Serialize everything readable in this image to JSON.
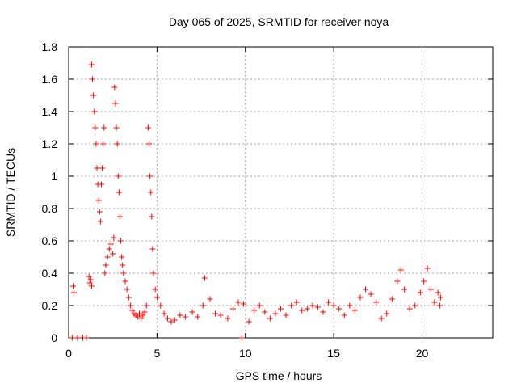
{
  "chart_data": {
    "type": "scatter",
    "title": "Day 065 of 2025, SRMTID for receiver noya",
    "xlabel": "GPS time / hours",
    "ylabel": "SRMTID / TECUs",
    "xlim": [
      0,
      24
    ],
    "ylim": [
      0,
      1.8
    ],
    "x_ticks": [
      0,
      5,
      10,
      15,
      20
    ],
    "y_ticks": [
      0,
      0.2,
      0.4,
      0.6,
      0.8,
      1,
      1.2,
      1.4,
      1.6,
      1.8
    ],
    "x_tick_labels": [
      "0",
      "5",
      "10",
      "15",
      "20"
    ],
    "y_tick_labels": [
      "0",
      "0.2",
      "0.4",
      "0.6",
      "0.8",
      "1",
      "1.2",
      "1.4",
      "1.6",
      "1.8"
    ],
    "grid": true,
    "marker": "plus",
    "marker_color": "#ff0000",
    "series": [
      {
        "name": "SRMTID",
        "points": [
          [
            0.25,
            0.32
          ],
          [
            0.3,
            0.28
          ],
          [
            1.15,
            0.38
          ],
          [
            1.2,
            0.34
          ],
          [
            1.25,
            0.36
          ],
          [
            1.3,
            0.32
          ],
          [
            1.3,
            1.69
          ],
          [
            1.35,
            1.6
          ],
          [
            1.4,
            1.5
          ],
          [
            1.45,
            1.4
          ],
          [
            1.5,
            1.3
          ],
          [
            1.55,
            1.2
          ],
          [
            1.6,
            1.05
          ],
          [
            1.65,
            0.95
          ],
          [
            1.7,
            0.85
          ],
          [
            1.75,
            0.78
          ],
          [
            1.8,
            0.72
          ],
          [
            1.85,
            0.95
          ],
          [
            1.9,
            1.05
          ],
          [
            1.95,
            1.2
          ],
          [
            2.0,
            1.3
          ],
          [
            2.05,
            0.4
          ],
          [
            2.1,
            0.45
          ],
          [
            2.2,
            0.5
          ],
          [
            2.3,
            0.55
          ],
          [
            2.4,
            0.58
          ],
          [
            2.5,
            0.52
          ],
          [
            2.55,
            0.62
          ],
          [
            2.6,
            1.55
          ],
          [
            2.65,
            1.45
          ],
          [
            2.7,
            1.3
          ],
          [
            2.75,
            1.2
          ],
          [
            2.8,
            1.0
          ],
          [
            2.85,
            0.9
          ],
          [
            2.9,
            0.75
          ],
          [
            2.95,
            0.6
          ],
          [
            3.0,
            0.5
          ],
          [
            3.05,
            0.45
          ],
          [
            3.1,
            0.4
          ],
          [
            3.2,
            0.35
          ],
          [
            3.3,
            0.3
          ],
          [
            3.4,
            0.25
          ],
          [
            3.5,
            0.2
          ],
          [
            3.6,
            0.17
          ],
          [
            3.7,
            0.15
          ],
          [
            3.8,
            0.14
          ],
          [
            3.9,
            0.13
          ],
          [
            4.0,
            0.15
          ],
          [
            4.1,
            0.12
          ],
          [
            4.2,
            0.14
          ],
          [
            4.3,
            0.16
          ],
          [
            4.4,
            0.2
          ],
          [
            4.5,
            1.3
          ],
          [
            4.55,
            1.2
          ],
          [
            4.6,
            1.0
          ],
          [
            4.65,
            0.9
          ],
          [
            4.7,
            0.75
          ],
          [
            4.75,
            0.55
          ],
          [
            4.8,
            0.4
          ],
          [
            4.9,
            0.3
          ],
          [
            5.0,
            0.25
          ],
          [
            5.2,
            0.2
          ],
          [
            5.4,
            0.15
          ],
          [
            5.6,
            0.12
          ],
          [
            5.8,
            0.1
          ],
          [
            6.0,
            0.11
          ],
          [
            6.3,
            0.14
          ],
          [
            6.6,
            0.13
          ],
          [
            7.0,
            0.16
          ],
          [
            7.3,
            0.13
          ],
          [
            7.6,
            0.2
          ],
          [
            7.7,
            0.37
          ],
          [
            8.0,
            0.24
          ],
          [
            8.3,
            0.15
          ],
          [
            8.6,
            0.14
          ],
          [
            9.0,
            0.12
          ],
          [
            9.3,
            0.18
          ],
          [
            9.6,
            0.22
          ],
          [
            9.9,
            0.21
          ],
          [
            10.2,
            0.1
          ],
          [
            10.5,
            0.17
          ],
          [
            10.8,
            0.2
          ],
          [
            11.1,
            0.16
          ],
          [
            11.4,
            0.12
          ],
          [
            11.7,
            0.15
          ],
          [
            12.0,
            0.18
          ],
          [
            12.3,
            0.14
          ],
          [
            12.6,
            0.2
          ],
          [
            12.9,
            0.22
          ],
          [
            13.2,
            0.17
          ],
          [
            13.5,
            0.18
          ],
          [
            13.8,
            0.2
          ],
          [
            14.1,
            0.19
          ],
          [
            14.4,
            0.16
          ],
          [
            14.7,
            0.22
          ],
          [
            15.0,
            0.2
          ],
          [
            15.3,
            0.18
          ],
          [
            15.6,
            0.14
          ],
          [
            15.9,
            0.2
          ],
          [
            16.2,
            0.17
          ],
          [
            16.5,
            0.25
          ],
          [
            16.8,
            0.3
          ],
          [
            17.1,
            0.27
          ],
          [
            17.4,
            0.22
          ],
          [
            17.7,
            0.12
          ],
          [
            18.0,
            0.15
          ],
          [
            18.3,
            0.24
          ],
          [
            18.6,
            0.35
          ],
          [
            18.8,
            0.42
          ],
          [
            19.0,
            0.3
          ],
          [
            19.3,
            0.18
          ],
          [
            19.6,
            0.2
          ],
          [
            19.9,
            0.28
          ],
          [
            20.1,
            0.35
          ],
          [
            20.3,
            0.43
          ],
          [
            20.5,
            0.3
          ],
          [
            20.7,
            0.22
          ],
          [
            20.9,
            0.28
          ],
          [
            21.0,
            0.2
          ],
          [
            21.05,
            0.25
          ],
          [
            0.2,
            0.0
          ],
          [
            0.5,
            0.0
          ],
          [
            0.8,
            0.0
          ],
          [
            1.0,
            0.0
          ],
          [
            9.8,
            0.0
          ]
        ]
      }
    ]
  }
}
